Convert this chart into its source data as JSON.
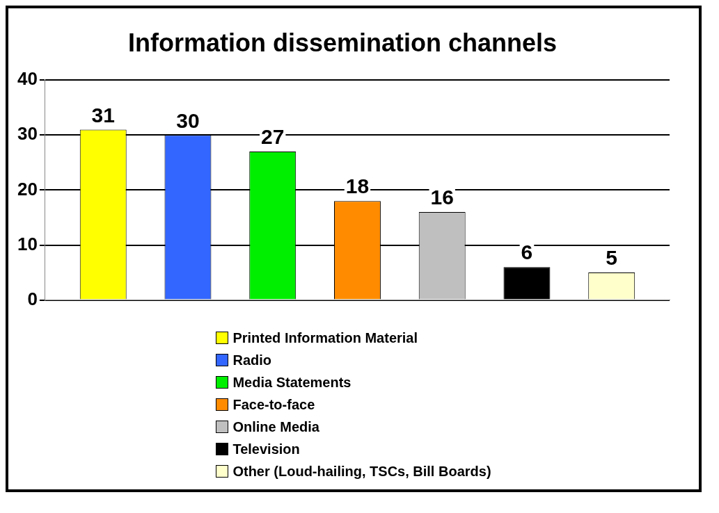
{
  "chart_data": {
    "type": "bar",
    "title": "Information dissemination channels",
    "categories": [
      null
    ],
    "series": [
      {
        "name": "Printed Information Material",
        "color": "#ffff00",
        "values": [
          31
        ]
      },
      {
        "name": "Radio",
        "color": "#3366ff",
        "values": [
          30
        ]
      },
      {
        "name": "Media Statements",
        "color": "#00ee00",
        "values": [
          27
        ]
      },
      {
        "name": "Face-to-face",
        "color": "#ff8c00",
        "values": [
          18
        ]
      },
      {
        "name": "Online Media",
        "color": "#bfbfbf",
        "values": [
          16
        ]
      },
      {
        "name": "Television",
        "color": "#000000",
        "values": [
          6
        ]
      },
      {
        "name": "Other (Loud-hailing, TSCs, Bill Boards)",
        "color": "#ffffcc",
        "values": [
          5
        ]
      }
    ],
    "ylim": [
      0,
      40
    ],
    "yticks": [
      0,
      10,
      20,
      30,
      40
    ],
    "grid": "y",
    "legend": "bottom",
    "data_labels": true
  }
}
